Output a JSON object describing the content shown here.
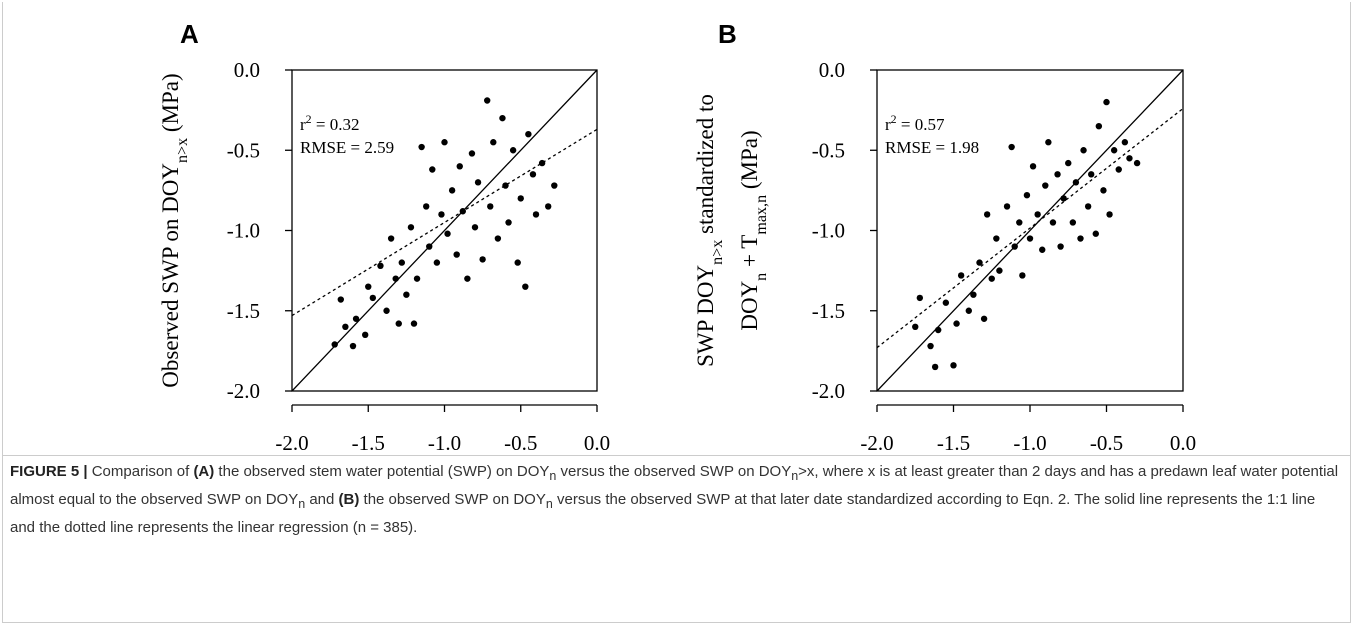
{
  "chart_data": [
    {
      "type": "scatter",
      "panel": "A",
      "color": "#000000",
      "xlabel": [
        "Observed SWP on DOY",
        "n",
        " (MPa)"
      ],
      "ylabel": [
        [
          "Observed SWP on DOY",
          "n>x",
          " (MPa)"
        ]
      ],
      "annotation": [
        [
          "r",
          "2",
          " = 0.32"
        ],
        [
          "RMSE = 2.59"
        ]
      ],
      "xlim": [
        -2,
        0
      ],
      "ylim": [
        -2,
        0
      ],
      "xticks": [
        {
          "value": -2,
          "label": "-2.0"
        },
        {
          "value": -1.5,
          "label": "-1.5"
        },
        {
          "value": -1,
          "label": "-1.0"
        },
        {
          "value": -0.5,
          "label": "-0.5"
        },
        {
          "value": 0,
          "label": "0.0"
        }
      ],
      "yticks": [
        {
          "value": -2,
          "label": "-2.0"
        },
        {
          "value": -1.5,
          "label": "-1.5"
        },
        {
          "value": -1,
          "label": "-1.0"
        },
        {
          "value": -0.5,
          "label": "-0.5"
        },
        {
          "value": 0,
          "label": "0.0"
        }
      ],
      "lines": [
        {
          "style": "solid",
          "x": [
            -2,
            0
          ],
          "y": [
            -2,
            0
          ]
        },
        {
          "style": "dotted",
          "x": [
            -2,
            0
          ],
          "y": [
            -1.53,
            -0.37
          ]
        }
      ],
      "x": [
        -1.72,
        -1.68,
        -1.65,
        -1.6,
        -1.58,
        -1.52,
        -1.5,
        -1.47,
        -1.42,
        -1.38,
        -1.35,
        -1.32,
        -1.3,
        -1.28,
        -1.25,
        -1.22,
        -1.2,
        -1.18,
        -1.15,
        -1.12,
        -1.1,
        -1.08,
        -1.05,
        -1.02,
        -1.0,
        -0.98,
        -0.95,
        -0.92,
        -0.9,
        -0.88,
        -0.85,
        -0.82,
        -0.8,
        -0.78,
        -0.75,
        -0.72,
        -0.7,
        -0.68,
        -0.65,
        -0.62,
        -0.6,
        -0.58,
        -0.55,
        -0.52,
        -0.5,
        -0.47,
        -0.45,
        -0.42,
        -0.4,
        -0.36,
        -0.32,
        -0.28
      ],
      "values": [
        -1.71,
        -1.43,
        -1.6,
        -1.72,
        -1.55,
        -1.65,
        -1.35,
        -1.42,
        -1.22,
        -1.5,
        -1.05,
        -1.3,
        -1.58,
        -1.2,
        -1.4,
        -0.98,
        -1.58,
        -1.3,
        -0.48,
        -0.85,
        -1.1,
        -0.62,
        -1.2,
        -0.9,
        -0.45,
        -1.02,
        -0.75,
        -1.15,
        -0.6,
        -0.88,
        -1.3,
        -0.52,
        -0.98,
        -0.7,
        -1.18,
        -0.19,
        -0.85,
        -0.45,
        -1.05,
        -0.3,
        -0.72,
        -0.95,
        -0.5,
        -1.2,
        -0.8,
        -1.35,
        -0.4,
        -0.65,
        -0.9,
        -0.58,
        -0.85,
        -0.72
      ]
    },
    {
      "type": "scatter",
      "panel": "B",
      "color": "#000000",
      "xlabel": [
        "Observed SWP on DOY",
        "n",
        " (MPa)"
      ],
      "ylabel": [
        [
          "SWP DOY",
          "n>x",
          " standardized to"
        ],
        [
          "DOY",
          "n",
          " + T",
          "max,n",
          " (MPa)"
        ]
      ],
      "annotation": [
        [
          "r",
          "2",
          " = 0.57"
        ],
        [
          "RMSE = 1.98"
        ]
      ],
      "xlim": [
        -2,
        0
      ],
      "ylim": [
        -2,
        0
      ],
      "xticks": [
        {
          "value": -2,
          "label": "-2.0"
        },
        {
          "value": -1.5,
          "label": "-1.5"
        },
        {
          "value": -1,
          "label": "-1.0"
        },
        {
          "value": -0.5,
          "label": "-0.5"
        },
        {
          "value": 0,
          "label": "0.0"
        }
      ],
      "yticks": [
        {
          "value": -2,
          "label": "-2.0"
        },
        {
          "value": -1.5,
          "label": "-1.5"
        },
        {
          "value": -1,
          "label": "-1.0"
        },
        {
          "value": -0.5,
          "label": "-0.5"
        },
        {
          "value": 0,
          "label": "0.0"
        }
      ],
      "lines": [
        {
          "style": "solid",
          "x": [
            -2,
            0
          ],
          "y": [
            -2,
            0
          ]
        },
        {
          "style": "dotted",
          "x": [
            -2,
            0
          ],
          "y": [
            -1.73,
            -0.24
          ]
        }
      ],
      "x": [
        -1.75,
        -1.72,
        -1.65,
        -1.62,
        -1.6,
        -1.55,
        -1.5,
        -1.48,
        -1.45,
        -1.4,
        -1.37,
        -1.33,
        -1.3,
        -1.28,
        -1.25,
        -1.22,
        -1.2,
        -1.15,
        -1.12,
        -1.1,
        -1.07,
        -1.05,
        -1.02,
        -1.0,
        -0.98,
        -0.95,
        -0.92,
        -0.9,
        -0.88,
        -0.85,
        -0.82,
        -0.8,
        -0.78,
        -0.75,
        -0.72,
        -0.7,
        -0.67,
        -0.65,
        -0.62,
        -0.6,
        -0.57,
        -0.55,
        -0.52,
        -0.5,
        -0.48,
        -0.45,
        -0.42,
        -0.38,
        -0.35,
        -0.3
      ],
      "values": [
        -1.6,
        -1.42,
        -1.72,
        -1.85,
        -1.62,
        -1.45,
        -1.84,
        -1.58,
        -1.28,
        -1.5,
        -1.4,
        -1.2,
        -1.55,
        -0.9,
        -1.3,
        -1.05,
        -1.25,
        -0.85,
        -0.48,
        -1.1,
        -0.95,
        -1.28,
        -0.78,
        -1.05,
        -0.6,
        -0.9,
        -1.12,
        -0.72,
        -0.45,
        -0.95,
        -0.65,
        -1.1,
        -0.8,
        -0.58,
        -0.95,
        -0.7,
        -1.05,
        -0.5,
        -0.85,
        -0.65,
        -1.02,
        -0.35,
        -0.75,
        -0.2,
        -0.9,
        -0.5,
        -0.62,
        -0.45,
        -0.55,
        -0.58
      ]
    }
  ],
  "caption": [
    "FIGURE 5 |",
    " Comparison of ",
    "(A)",
    " the observed stem water potential (SWP) on DOY",
    "n",
    " versus the observed SWP on DOY",
    "n",
    ">x, where x is at least greater than 2 days and has a predawn leaf water potential almost equal to the observed SWP on DOY",
    "n",
    " and ",
    "(B)",
    " the observed SWP on DOY",
    "n",
    " versus the observed SWP at that later date standardized according to Eqn. 2. The solid line represents the 1:1 line and the dotted line represents the linear regression (n = 385)."
  ]
}
